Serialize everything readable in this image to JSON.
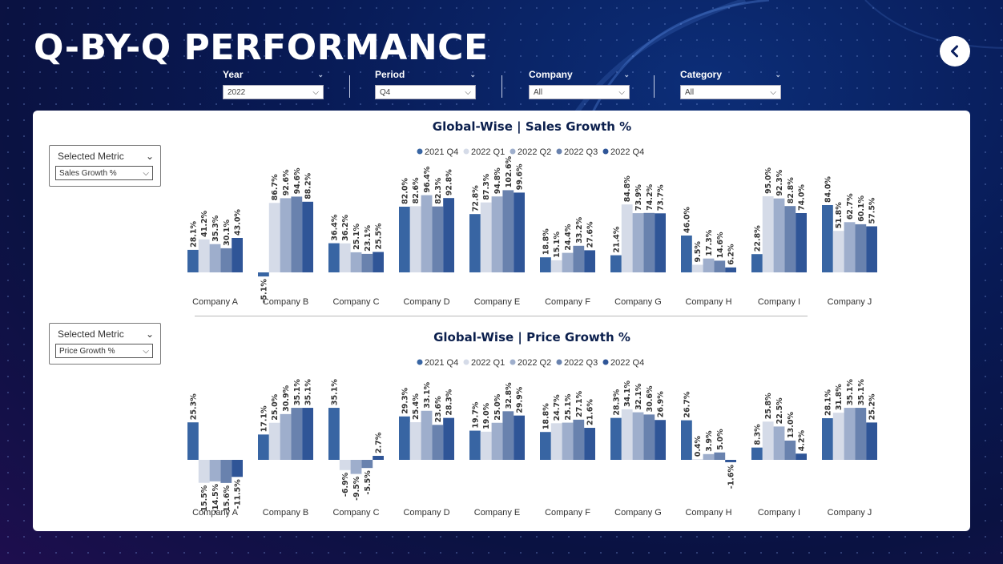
{
  "page": {
    "title": "Q-BY-Q PERFORMANCE",
    "back_icon": "chevron-left-icon"
  },
  "filters": [
    {
      "label": "Year",
      "value": "2022"
    },
    {
      "label": "Period",
      "value": "Q4"
    },
    {
      "label": "Company",
      "value": "All"
    },
    {
      "label": "Category",
      "value": "All"
    }
  ],
  "slicers": {
    "sales": {
      "label": "Selected Metric",
      "value": "Sales Growth %"
    },
    "price": {
      "label": "Selected Metric",
      "value": "Price Growth %"
    }
  },
  "colors": [
    "#3865a3",
    "#d5dbe8",
    "#9eaecc",
    "#6982ae",
    "#2f5597"
  ],
  "chart_data": [
    {
      "type": "bar",
      "title": "Global-Wise | Sales Growth %",
      "categories": [
        "Company A",
        "Company B",
        "Company C",
        "Company D",
        "Company E",
        "Company F",
        "Company G",
        "Company H",
        "Company I",
        "Company J"
      ],
      "series": [
        {
          "name": "2021 Q4",
          "values": [
            28.1,
            -5.1,
            36.4,
            82.0,
            72.8,
            18.8,
            21.4,
            46.0,
            22.8,
            84.0
          ]
        },
        {
          "name": "2022 Q1",
          "values": [
            41.2,
            86.7,
            36.2,
            82.6,
            87.3,
            15.1,
            84.8,
            9.5,
            95.0,
            51.8
          ]
        },
        {
          "name": "2022 Q2",
          "values": [
            35.3,
            92.6,
            25.1,
            96.4,
            94.8,
            24.4,
            73.9,
            17.3,
            92.3,
            62.7
          ]
        },
        {
          "name": "2022 Q3",
          "values": [
            30.1,
            94.6,
            23.1,
            82.3,
            102.6,
            33.2,
            74.2,
            14.6,
            82.8,
            60.1
          ]
        },
        {
          "name": "2022 Q4",
          "values": [
            43.0,
            88.2,
            25.5,
            92.8,
            99.6,
            27.6,
            73.7,
            6.2,
            74.0,
            57.5
          ]
        }
      ],
      "legend": "top-center",
      "grid": false
    },
    {
      "type": "bar",
      "title": "Global-Wise | Price Growth %",
      "categories": [
        "Company A",
        "Company B",
        "Company C",
        "Company D",
        "Company E",
        "Company F",
        "Company G",
        "Company H",
        "Company I",
        "Company J"
      ],
      "series": [
        {
          "name": "2021 Q4",
          "values": [
            25.3,
            17.1,
            35.1,
            29.3,
            19.7,
            18.8,
            28.3,
            26.7,
            8.3,
            28.1
          ]
        },
        {
          "name": "2022 Q1",
          "values": [
            -15.5,
            25.0,
            -6.9,
            25.4,
            19.0,
            24.7,
            34.1,
            0.4,
            25.8,
            31.8
          ]
        },
        {
          "name": "2022 Q2",
          "values": [
            -14.5,
            30.9,
            -9.5,
            33.1,
            25.0,
            25.1,
            32.1,
            3.9,
            22.5,
            35.1
          ]
        },
        {
          "name": "2022 Q3",
          "values": [
            -15.6,
            35.1,
            -5.5,
            23.6,
            32.8,
            27.1,
            30.6,
            5.0,
            13.0,
            35.1
          ]
        },
        {
          "name": "2022 Q4",
          "values": [
            -11.5,
            35.1,
            2.7,
            28.3,
            29.9,
            21.6,
            26.9,
            -1.6,
            4.2,
            25.2
          ]
        }
      ],
      "legend": "top-center",
      "grid": false
    }
  ]
}
